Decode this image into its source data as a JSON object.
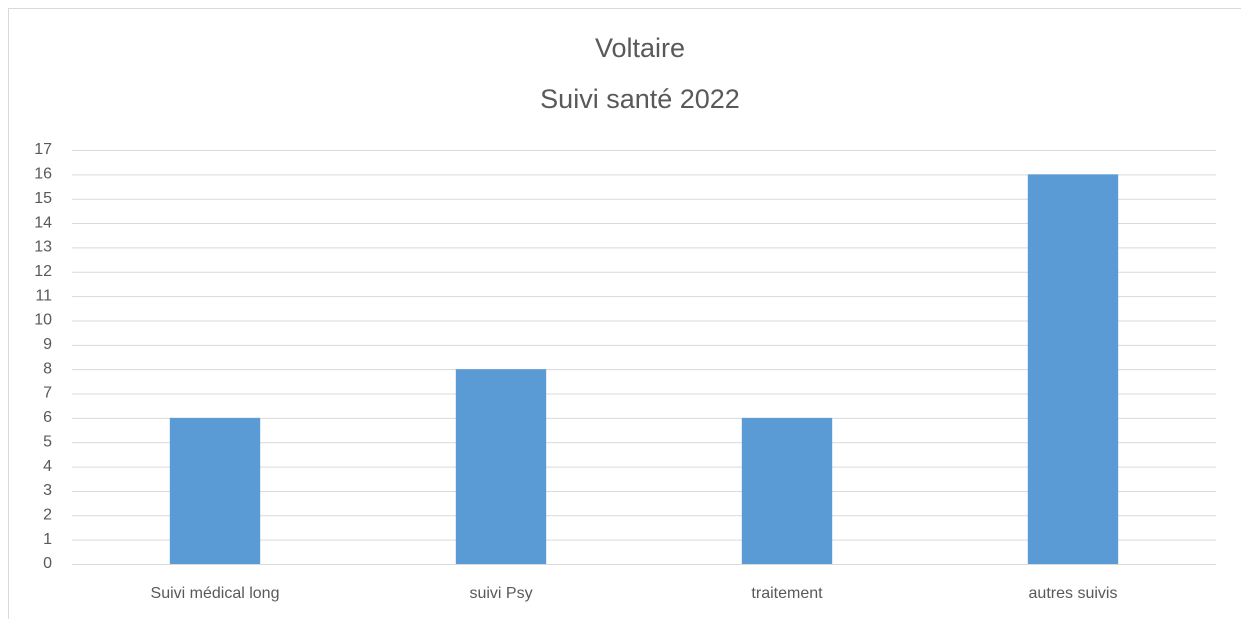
{
  "chart_data": {
    "type": "bar",
    "title": [
      "Voltaire",
      "Suivi santé 2022"
    ],
    "categories": [
      "Suivi médical long",
      "suivi Psy",
      "traitement",
      "autres suivis"
    ],
    "values": [
      6,
      8,
      6,
      16
    ],
    "color": "#5b9bd5",
    "ylim": [
      0,
      17
    ],
    "yticks": [
      0,
      1,
      2,
      3,
      4,
      5,
      6,
      7,
      8,
      9,
      10,
      11,
      12,
      13,
      14,
      15,
      16,
      17
    ],
    "grid": true
  }
}
